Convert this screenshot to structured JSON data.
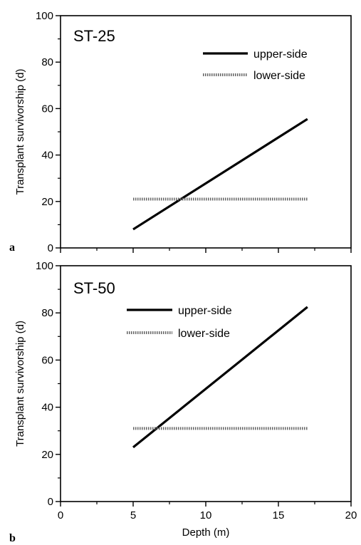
{
  "chart_data": [
    {
      "type": "line",
      "panel_letter": "a",
      "title": "ST-25",
      "xlabel": "",
      "ylabel": "Transplant survivorship (d)",
      "xlim": [
        0,
        20
      ],
      "ylim": [
        0,
        100
      ],
      "xticks": [
        0,
        5,
        10,
        15,
        20
      ],
      "yticks": [
        0,
        20,
        40,
        60,
        80,
        100
      ],
      "show_x_tick_labels": false,
      "grid": false,
      "legend": "top-right",
      "series": [
        {
          "name": "upper-side",
          "style": "solid",
          "color": "#000000",
          "x": [
            5,
            17
          ],
          "y": [
            8,
            55.5
          ]
        },
        {
          "name": "lower-side",
          "style": "dotted",
          "color": "#666666",
          "x": [
            5,
            17
          ],
          "y": [
            21,
            21
          ]
        }
      ]
    },
    {
      "type": "line",
      "panel_letter": "b",
      "title": "ST-50",
      "xlabel": "Depth (m)",
      "ylabel": "Transplant survivorship (d)",
      "xlim": [
        0,
        20
      ],
      "ylim": [
        0,
        100
      ],
      "xticks": [
        0,
        5,
        10,
        15,
        20
      ],
      "yticks": [
        0,
        20,
        40,
        60,
        80,
        100
      ],
      "show_x_tick_labels": true,
      "grid": false,
      "legend": "top-center",
      "series": [
        {
          "name": "upper-side",
          "style": "solid",
          "color": "#000000",
          "x": [
            5,
            17
          ],
          "y": [
            23,
            82.5
          ]
        },
        {
          "name": "lower-side",
          "style": "dotted",
          "color": "#666666",
          "x": [
            5,
            17
          ],
          "y": [
            31,
            31
          ]
        }
      ]
    }
  ]
}
